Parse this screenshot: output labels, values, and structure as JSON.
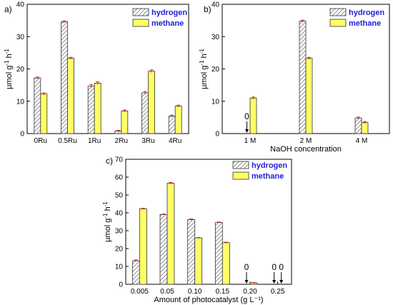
{
  "chart_data": [
    {
      "type": "bar",
      "panel_label": "a)",
      "categories": [
        "0Ru",
        "0.5Ru",
        "1Ru",
        "2Ru",
        "3Ru",
        "4Ru"
      ],
      "series": [
        {
          "name": "hydrogen",
          "values": [
            17.2,
            34.6,
            14.7,
            0.8,
            12.6,
            5.4
          ],
          "errors": [
            0.3,
            0.3,
            0.5,
            0.2,
            0.4,
            0.3
          ]
        },
        {
          "name": "methane",
          "values": [
            12.3,
            23.3,
            15.6,
            7.0,
            19.3,
            8.5
          ],
          "errors": [
            0.3,
            0.3,
            0.4,
            0.3,
            0.4,
            0.3
          ]
        }
      ],
      "xlabel": "",
      "ylabel": "µmol g⁻¹ h⁻¹",
      "ylim": [
        0,
        40
      ],
      "yticks": [
        0,
        10,
        20,
        30,
        40
      ],
      "legend": "top-right",
      "grid": false
    },
    {
      "type": "bar",
      "panel_label": "b)",
      "categories": [
        "1 M",
        "2 M",
        "4 M"
      ],
      "series": [
        {
          "name": "hydrogen",
          "values": [
            0,
            34.8,
            4.8
          ],
          "errors": [
            0,
            0.3,
            0.3
          ]
        },
        {
          "name": "methane",
          "values": [
            11.0,
            23.3,
            3.4
          ],
          "errors": [
            0.3,
            0.3,
            0.3
          ]
        }
      ],
      "xlabel": "NaOH concentration",
      "ylabel": "µmol g⁻¹ h⁻¹",
      "ylim": [
        0,
        40
      ],
      "yticks": [
        0,
        10,
        20,
        30,
        40
      ],
      "legend": "top-right",
      "grid": false,
      "annotations": [
        {
          "text": "0",
          "category": "1 M",
          "series": "hydrogen"
        }
      ]
    },
    {
      "type": "bar",
      "panel_label": "c)",
      "categories": [
        "0.005",
        "0.05",
        "0.10",
        "0.15",
        "0.20",
        "0.25"
      ],
      "series": [
        {
          "name": "hydrogen",
          "values": [
            13.2,
            39.1,
            36.2,
            34.6,
            0,
            0
          ],
          "errors": [
            0.4,
            0.3,
            0.4,
            0.3,
            0,
            0
          ]
        },
        {
          "name": "methane",
          "values": [
            42.3,
            56.6,
            26.0,
            23.3,
            0.8,
            0
          ],
          "errors": [
            0.3,
            0.4,
            0.2,
            0.3,
            0.2,
            0
          ]
        }
      ],
      "xlabel": "Amount of photocatalyst (g L⁻¹)",
      "ylabel": "µmol g⁻¹ h⁻¹",
      "ylim": [
        0,
        70
      ],
      "yticks": [
        0,
        10,
        20,
        30,
        40,
        50,
        60,
        70
      ],
      "legend": "top-right",
      "grid": false,
      "annotations": [
        {
          "text": "0",
          "category": "0.20",
          "series": "hydrogen"
        },
        {
          "text": "0",
          "category": "0.25",
          "series": "hydrogen"
        },
        {
          "text": "0",
          "category": "0.25",
          "series": "methane"
        }
      ]
    }
  ],
  "colors": {
    "hydrogen_fill": "#ffffff",
    "hydrogen_hatch": "#555555",
    "methane_fill": "#ffff66",
    "error_bar": "#e02020",
    "legend_text": "#1f1fd6"
  }
}
